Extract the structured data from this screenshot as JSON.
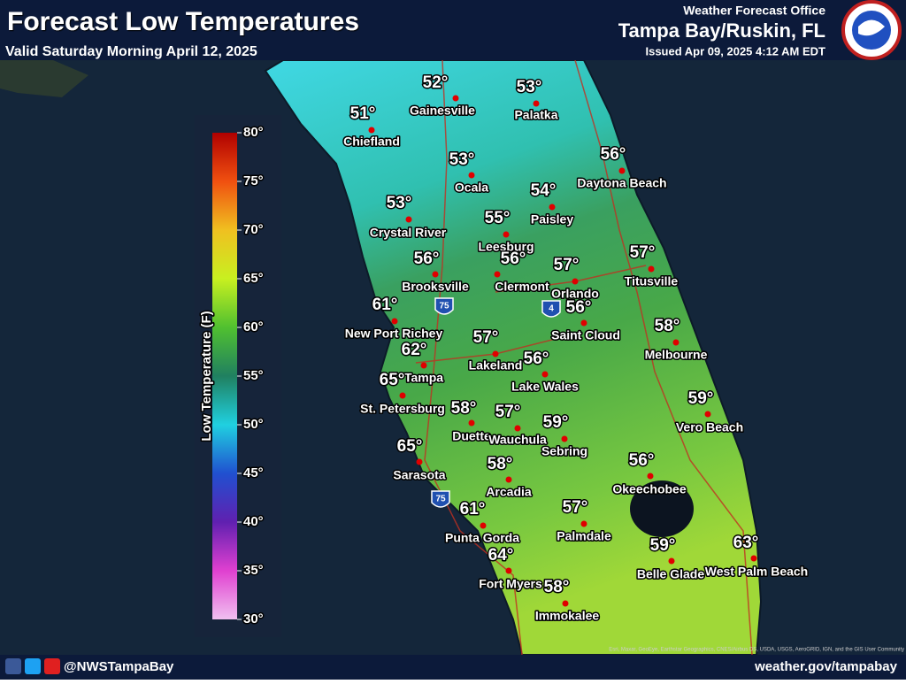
{
  "header": {
    "title": "Forecast Low Temperatures",
    "subtitle": "Valid Saturday Morning April 12, 2025",
    "office": "Weather Forecast Office",
    "location": "Tampa Bay/Ruskin, FL",
    "issued": "Issued Apr 09, 2025 4:12 AM EDT"
  },
  "legend": {
    "title": "Low Temperature (F)",
    "lim": [
      30,
      80
    ],
    "ticks": [
      {
        "value": 80,
        "label": "80°",
        "color": "#b00000"
      },
      {
        "value": 75,
        "label": "75°",
        "color": "#f05010"
      },
      {
        "value": 70,
        "label": "70°",
        "color": "#f0c020"
      },
      {
        "value": 65,
        "label": "65°",
        "color": "#c8f020"
      },
      {
        "value": 60,
        "label": "60°",
        "color": "#50c030"
      },
      {
        "value": 55,
        "label": "55°",
        "color": "#208060"
      },
      {
        "value": 50,
        "label": "50°",
        "color": "#20d0e0"
      },
      {
        "value": 45,
        "label": "45°",
        "color": "#2050d0"
      },
      {
        "value": 40,
        "label": "40°",
        "color": "#6020b0"
      },
      {
        "value": 35,
        "label": "35°",
        "color": "#e040d0"
      },
      {
        "value": 30,
        "label": "30°",
        "color": "#f0c0f0"
      }
    ]
  },
  "cities": [
    {
      "name": "Gainesville",
      "temp": "52°"
    },
    {
      "name": "Palatka",
      "temp": "53°"
    },
    {
      "name": "Chiefland",
      "temp": "51°"
    },
    {
      "name": "Ocala",
      "temp": "53°"
    },
    {
      "name": "Daytona Beach",
      "temp": "56°"
    },
    {
      "name": "Paisley",
      "temp": "54°"
    },
    {
      "name": "Crystal River",
      "temp": "53°"
    },
    {
      "name": "Leesburg",
      "temp": "55°"
    },
    {
      "name": "Brooksville",
      "temp": "56°"
    },
    {
      "name": "Clermont",
      "temp": "56°"
    },
    {
      "name": "Orlando",
      "temp": "57°"
    },
    {
      "name": "Titusville",
      "temp": "57°"
    },
    {
      "name": "New Port Richey",
      "temp": "61°"
    },
    {
      "name": "Saint Cloud",
      "temp": "56°"
    },
    {
      "name": "Melbourne",
      "temp": "58°"
    },
    {
      "name": "Tampa",
      "temp": "62°"
    },
    {
      "name": "Lakeland",
      "temp": "57°"
    },
    {
      "name": "Lake Wales",
      "temp": "56°"
    },
    {
      "name": "St. Petersburg",
      "temp": "65°"
    },
    {
      "name": "Vero Beach",
      "temp": "59°"
    },
    {
      "name": "Duette",
      "temp": "58°"
    },
    {
      "name": "Wauchula",
      "temp": "57°"
    },
    {
      "name": "Sebring",
      "temp": "59°"
    },
    {
      "name": "Sarasota",
      "temp": "65°"
    },
    {
      "name": "Arcadia",
      "temp": "58°"
    },
    {
      "name": "Okeechobee",
      "temp": "56°"
    },
    {
      "name": "Punta Gorda",
      "temp": "61°"
    },
    {
      "name": "Palmdale",
      "temp": "57°"
    },
    {
      "name": "Belle Glade",
      "temp": "59°"
    },
    {
      "name": "West Palm Beach",
      "temp": "63°"
    },
    {
      "name": "Fort Myers",
      "temp": "64°"
    },
    {
      "name": "Immokalee",
      "temp": "58°"
    }
  ],
  "highways": [
    "75",
    "4",
    "75"
  ],
  "attribution": "Esri, Maxar, GeoEye, Earthstar Geographics, CNES/Airbus DS, USDA, USGS, AeroGRID, IGN, and the GIS User Community",
  "footer": {
    "handle": "@NWSTampaBay",
    "url": "weather.gov/tampabay"
  }
}
